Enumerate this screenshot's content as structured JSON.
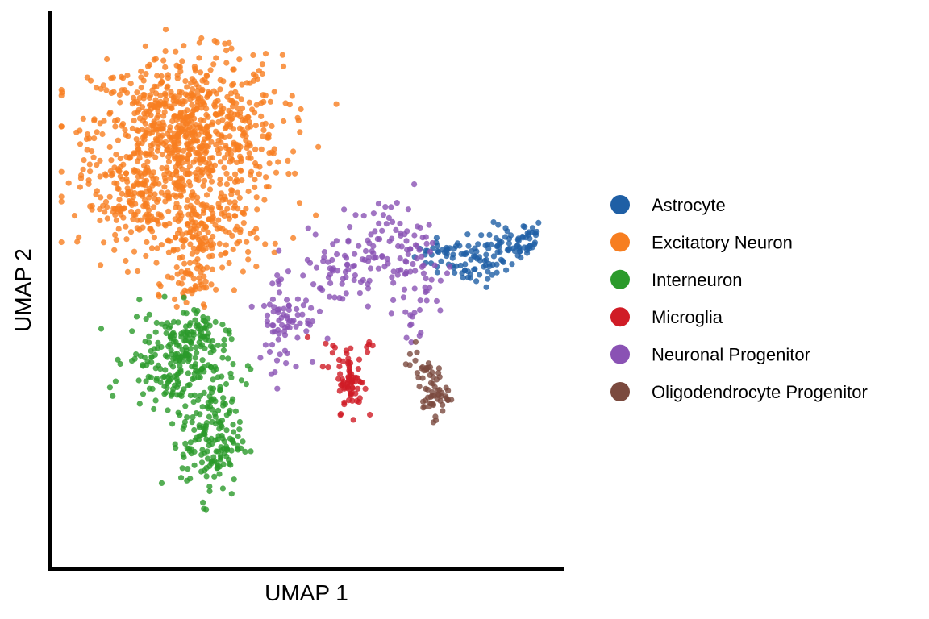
{
  "chart_data": {
    "type": "scatter",
    "title": "",
    "xlabel": "UMAP 1",
    "ylabel": "UMAP 2",
    "xlim": [
      0,
      100
    ],
    "ylim": [
      0,
      100
    ],
    "grid": false,
    "ticks": false,
    "legend_position": "right",
    "series": [
      {
        "name": "Astrocyte",
        "color": "#1f5fa5",
        "clusters": [
          {
            "cx": 77,
            "cy": 57,
            "sx": 2.6,
            "sy": 1.4,
            "n": 30
          },
          {
            "cx": 84,
            "cy": 55,
            "sx": 2.8,
            "sy": 2.2,
            "n": 55
          },
          {
            "cx": 90,
            "cy": 58,
            "sx": 2.2,
            "sy": 2.2,
            "n": 40
          },
          {
            "cx": 94,
            "cy": 60,
            "sx": 1.6,
            "sy": 1.8,
            "n": 25
          }
        ]
      },
      {
        "name": "Excitatory Neuron",
        "color": "#f77e20",
        "clusters": [
          {
            "cx": 26,
            "cy": 79,
            "sx": 9.5,
            "sy": 7.5,
            "n": 820
          },
          {
            "cx": 17,
            "cy": 66,
            "sx": 6.0,
            "sy": 4.0,
            "n": 160
          },
          {
            "cx": 30,
            "cy": 60,
            "sx": 5.0,
            "sy": 4.0,
            "n": 140
          },
          {
            "cx": 27,
            "cy": 51,
            "sx": 2.5,
            "sy": 3.0,
            "n": 45
          }
        ]
      },
      {
        "name": "Interneuron",
        "color": "#2b9a2b",
        "clusters": [
          {
            "cx": 24,
            "cy": 37,
            "sx": 5.0,
            "sy": 4.5,
            "n": 210
          },
          {
            "cx": 31,
            "cy": 22,
            "sx": 3.0,
            "sy": 5.5,
            "n": 170
          },
          {
            "cx": 28,
            "cy": 43,
            "sx": 2.5,
            "sy": 2.5,
            "n": 40
          }
        ]
      },
      {
        "name": "Microglia",
        "color": "#d01c26",
        "clusters": [
          {
            "cx": 59,
            "cy": 32,
            "sx": 1.3,
            "sy": 2.5,
            "n": 60
          },
          {
            "cx": 57,
            "cy": 38,
            "sx": 2.0,
            "sy": 1.5,
            "n": 15
          },
          {
            "cx": 62,
            "cy": 40,
            "sx": 0.8,
            "sy": 1.0,
            "n": 5
          }
        ]
      },
      {
        "name": "Neuronal Progenitor",
        "color": "#8a52b4",
        "clusters": [
          {
            "cx": 46,
            "cy": 45,
            "sx": 3.0,
            "sy": 5.0,
            "n": 80
          },
          {
            "cx": 56,
            "cy": 54,
            "sx": 4.0,
            "sy": 3.5,
            "n": 50
          },
          {
            "cx": 66,
            "cy": 59,
            "sx": 3.5,
            "sy": 4.0,
            "n": 70
          },
          {
            "cx": 73,
            "cy": 53,
            "sx": 3.0,
            "sy": 4.5,
            "n": 40
          },
          {
            "cx": 71,
            "cy": 43,
            "sx": 1.0,
            "sy": 2.5,
            "n": 10
          }
        ]
      },
      {
        "name": "Oligodendrocyte Progenitor",
        "color": "#7b4a3e",
        "clusters": [
          {
            "cx": 75,
            "cy": 31,
            "sx": 1.6,
            "sy": 2.6,
            "n": 55
          },
          {
            "cx": 73,
            "cy": 36,
            "sx": 1.5,
            "sy": 1.0,
            "n": 10
          }
        ]
      }
    ]
  }
}
